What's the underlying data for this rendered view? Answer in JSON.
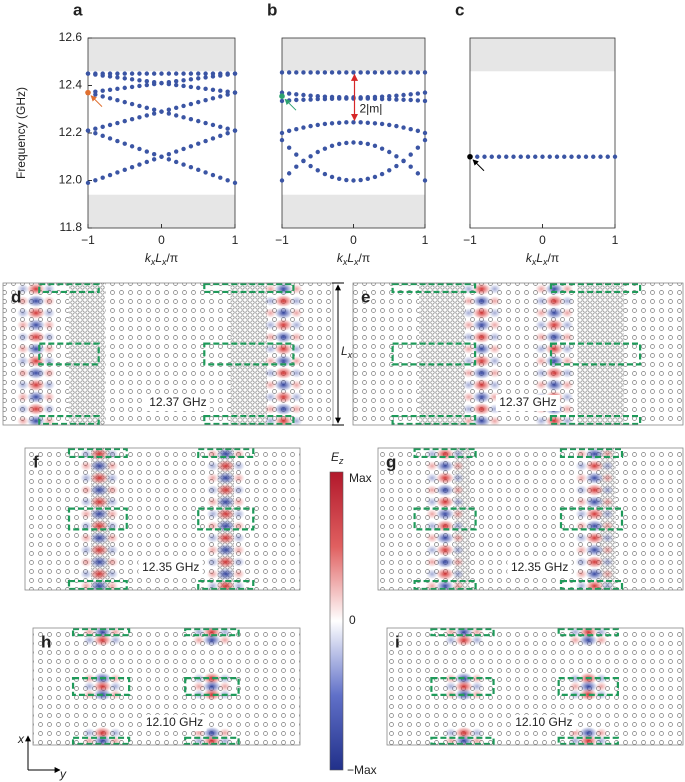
{
  "chart_data": [
    {
      "type": "scatter",
      "panel": "a",
      "ylabel": "Frequency (GHz)",
      "xlabel": [
        {
          "text": "k"
        },
        {
          "text": "x",
          "sub": true
        },
        {
          "text": "L"
        },
        {
          "text": "x",
          "sub": true
        },
        {
          "text": "/π"
        }
      ],
      "xlim": [
        -1,
        1
      ],
      "ylim": [
        11.8,
        12.6
      ],
      "xticks": [
        {
          "value": -1,
          "label": "−1"
        },
        0,
        1
      ],
      "yticks": [
        11.8,
        {
          "value": 12,
          "label": "12.0"
        },
        12.2,
        12.4,
        12.6
      ],
      "shaded": [
        [
          11.8,
          11.94
        ],
        [
          12.46,
          12.6
        ]
      ],
      "x": [
        -1,
        -0.9,
        -0.8,
        -0.7,
        -0.6,
        -0.5,
        -0.4,
        -0.3,
        -0.2,
        -0.1,
        0,
        0.1,
        0.2,
        0.3,
        0.4,
        0.5,
        0.6,
        0.7,
        0.8,
        0.9,
        1
      ],
      "series": [
        {
          "color": "#3b55a4",
          "values": [
            12.45,
            12.45,
            12.45,
            12.45,
            12.45,
            12.45,
            12.45,
            12.45,
            12.45,
            12.45,
            12.45,
            12.45,
            12.45,
            12.45,
            12.45,
            12.45,
            12.45,
            12.45,
            12.45,
            12.45,
            12.45
          ]
        },
        {
          "color": "#3b55a4",
          "values": [
            12.37,
            12.374,
            12.378,
            12.382,
            12.386,
            12.39,
            12.394,
            12.398,
            12.402,
            12.406,
            12.41,
            12.414,
            12.418,
            12.422,
            12.426,
            12.43,
            12.434,
            12.438,
            12.442,
            12.446,
            12.45
          ]
        },
        {
          "color": "#3b55a4",
          "values": [
            12.45,
            12.446,
            12.442,
            12.438,
            12.434,
            12.43,
            12.426,
            12.422,
            12.418,
            12.414,
            12.41,
            12.406,
            12.402,
            12.398,
            12.394,
            12.39,
            12.386,
            12.382,
            12.378,
            12.374,
            12.37
          ]
        },
        {
          "color": "#3b55a4",
          "values": [
            12.21,
            12.218,
            12.226,
            12.234,
            12.242,
            12.25,
            12.258,
            12.266,
            12.274,
            12.282,
            12.29,
            12.298,
            12.306,
            12.314,
            12.322,
            12.33,
            12.338,
            12.346,
            12.354,
            12.362,
            12.37
          ]
        },
        {
          "color": "#3b55a4",
          "values": [
            12.37,
            12.362,
            12.354,
            12.346,
            12.338,
            12.33,
            12.322,
            12.314,
            12.306,
            12.298,
            12.29,
            12.282,
            12.274,
            12.266,
            12.258,
            12.25,
            12.242,
            12.234,
            12.226,
            12.218,
            12.21
          ]
        },
        {
          "color": "#3b55a4",
          "values": [
            11.99,
            12.001,
            12.012,
            12.023,
            12.034,
            12.045,
            12.056,
            12.067,
            12.078,
            12.089,
            12.1,
            12.111,
            12.122,
            12.133,
            12.144,
            12.155,
            12.166,
            12.177,
            12.188,
            12.199,
            12.21
          ]
        },
        {
          "color": "#3b55a4",
          "values": [
            12.21,
            12.199,
            12.188,
            12.177,
            12.166,
            12.155,
            12.144,
            12.133,
            12.122,
            12.111,
            12.1,
            12.089,
            12.078,
            12.067,
            12.056,
            12.045,
            12.034,
            12.023,
            12.012,
            12.001,
            11.99
          ]
        }
      ],
      "marker": {
        "x": -1,
        "y": 12.37,
        "color": "#e07030"
      }
    },
    {
      "type": "scatter",
      "panel": "b",
      "xlabel": [
        {
          "text": "k"
        },
        {
          "text": "x",
          "sub": true
        },
        {
          "text": "L"
        },
        {
          "text": "x",
          "sub": true
        },
        {
          "text": "/π"
        }
      ],
      "xlim": [
        -1,
        1
      ],
      "ylim": [
        11.8,
        12.6
      ],
      "xticks": [
        {
          "value": -1,
          "label": "−1"
        },
        0,
        1
      ],
      "shaded": [
        [
          11.8,
          11.94
        ],
        [
          12.46,
          12.6
        ]
      ],
      "x": [
        -1,
        -0.9,
        -0.8,
        -0.7,
        -0.6,
        -0.5,
        -0.4,
        -0.3,
        -0.2,
        -0.1,
        0,
        0.1,
        0.2,
        0.3,
        0.4,
        0.5,
        0.6,
        0.7,
        0.8,
        0.9,
        1
      ],
      "series": [
        {
          "color": "#3b55a4",
          "values": [
            12.455,
            12.455,
            12.455,
            12.455,
            12.455,
            12.455,
            12.455,
            12.455,
            12.455,
            12.455,
            12.455,
            12.455,
            12.455,
            12.455,
            12.455,
            12.455,
            12.455,
            12.455,
            12.455,
            12.455,
            12.455
          ]
        },
        {
          "color": "#3b55a4",
          "values": [
            12.37,
            12.366,
            12.363,
            12.36,
            12.357,
            12.355,
            12.353,
            12.352,
            12.351,
            12.35,
            12.35,
            12.35,
            12.351,
            12.352,
            12.353,
            12.355,
            12.357,
            12.36,
            12.363,
            12.366,
            12.37
          ]
        },
        {
          "color": "#3b55a4",
          "values": [
            12.335,
            12.337,
            12.339,
            12.34,
            12.341,
            12.343,
            12.343,
            12.344,
            12.345,
            12.345,
            12.345,
            12.345,
            12.345,
            12.344,
            12.343,
            12.343,
            12.341,
            12.34,
            12.339,
            12.337,
            12.335
          ]
        },
        {
          "color": "#3b55a4",
          "values": [
            12.2,
            12.209,
            12.216,
            12.223,
            12.229,
            12.234,
            12.238,
            12.241,
            12.243,
            12.245,
            12.245,
            12.245,
            12.243,
            12.241,
            12.238,
            12.234,
            12.229,
            12.223,
            12.216,
            12.209,
            12.2
          ]
        },
        {
          "color": "#3b55a4",
          "values": [
            12.17,
            12.138,
            12.109,
            12.083,
            12.061,
            12.043,
            12.027,
            12.015,
            12.007,
            12.002,
            12,
            12.002,
            12.007,
            12.015,
            12.027,
            12.043,
            12.061,
            12.083,
            12.109,
            12.138,
            12.17
          ]
        },
        {
          "color": "#3b55a4",
          "values": [
            12,
            12.03,
            12.058,
            12.082,
            12.102,
            12.12,
            12.134,
            12.146,
            12.154,
            12.158,
            12.16,
            12.158,
            12.154,
            12.146,
            12.134,
            12.12,
            12.102,
            12.082,
            12.058,
            12.03,
            12
          ]
        }
      ],
      "marker": {
        "x": -1,
        "y": 12.355,
        "color": "#2ca070"
      },
      "annotation": {
        "text": "2|m|",
        "x": 0,
        "from": 12.455,
        "to": 12.245,
        "color": "#d62728"
      }
    },
    {
      "type": "scatter",
      "panel": "c",
      "xlabel": [
        {
          "text": "k"
        },
        {
          "text": "x",
          "sub": true
        },
        {
          "text": "L"
        },
        {
          "text": "x",
          "sub": true
        },
        {
          "text": "/π"
        }
      ],
      "xlim": [
        -1,
        1
      ],
      "ylim": [
        11.8,
        12.6
      ],
      "xticks": [
        {
          "value": -1,
          "label": "−1"
        },
        0,
        1
      ],
      "shaded": [
        [
          12.46,
          12.6
        ]
      ],
      "x": [
        -1,
        -0.9,
        -0.8,
        -0.7,
        -0.6,
        -0.5,
        -0.4,
        -0.3,
        -0.2,
        -0.1,
        0,
        0.1,
        0.2,
        0.3,
        0.4,
        0.5,
        0.6,
        0.7,
        0.8,
        0.9,
        1
      ],
      "series": [
        {
          "color": "#3b55a4",
          "values": [
            12.1,
            12.1,
            12.1,
            12.1,
            12.1,
            12.1,
            12.1,
            12.1,
            12.1,
            12.1,
            12.1,
            12.1,
            12.1,
            12.1,
            12.1,
            12.1,
            12.1,
            12.1,
            12.1,
            12.1,
            12.1
          ]
        }
      ],
      "marker": {
        "x": -1,
        "y": 12.1,
        "color": "#000000"
      }
    }
  ],
  "field_maps": [
    {
      "panel": "d",
      "frequency": "12.37 GHz"
    },
    {
      "panel": "e",
      "frequency": "12.37 GHz"
    },
    {
      "panel": "f",
      "frequency": "12.35 GHz"
    },
    {
      "panel": "g",
      "frequency": "12.35 GHz"
    },
    {
      "panel": "h",
      "frequency": "12.10 GHz"
    },
    {
      "panel": "i",
      "frequency": "12.10 GHz"
    }
  ],
  "lx_label": [
    {
      "text": "L"
    },
    {
      "text": "x",
      "sub": true
    }
  ],
  "colorbar": {
    "title": [
      {
        "text": "E"
      },
      {
        "text": "z",
        "sub": true
      }
    ],
    "max": "Max",
    "zero": "0",
    "min": "−Max"
  },
  "axes_hint": {
    "x": "x",
    "y": "y"
  }
}
